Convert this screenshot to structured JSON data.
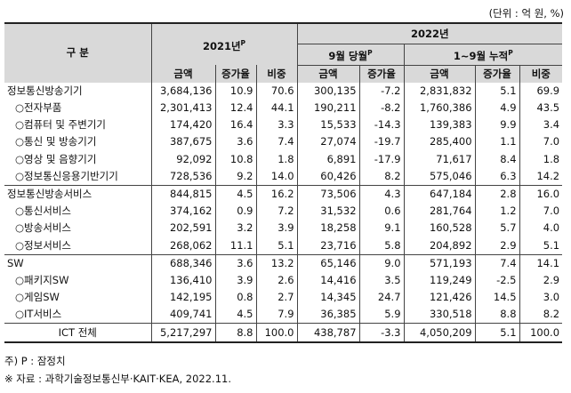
{
  "unit_label": "(단위 : 억 원, %)",
  "header": {
    "category": "구 분",
    "y2021": "2021년",
    "y2021_sup": "P",
    "y2022": "2022년",
    "sep": "9월 당월",
    "sep_sup": "P",
    "jan_sep": "1~9월 누적",
    "jan_sep_sup": "P",
    "amount": "금액",
    "growth": "증가율",
    "share": "비중"
  },
  "rows": [
    {
      "label": "정보통신방송기기",
      "a2021": "3,684,136",
      "g2021": "10.9",
      "s2021": "70.6",
      "a_sep": "300,135",
      "g_sep": "-7.2",
      "a_cum": "2,831,832",
      "g_cum": "5.1",
      "s_cum": "69.9"
    },
    {
      "label": "○전자부품",
      "a2021": "2,301,413",
      "g2021": "12.4",
      "s2021": "44.1",
      "a_sep": "190,211",
      "g_sep": "-8.2",
      "a_cum": "1,760,386",
      "g_cum": "4.9",
      "s_cum": "43.5"
    },
    {
      "label": "○컴퓨터 및 주변기기",
      "a2021": "174,420",
      "g2021": "16.4",
      "s2021": "3.3",
      "a_sep": "15,533",
      "g_sep": "-14.3",
      "a_cum": "139,383",
      "g_cum": "9.9",
      "s_cum": "3.4"
    },
    {
      "label": "○통신 및 방송기기",
      "a2021": "387,675",
      "g2021": "3.6",
      "s2021": "7.4",
      "a_sep": "27,074",
      "g_sep": "-19.7",
      "a_cum": "285,400",
      "g_cum": "1.1",
      "s_cum": "7.0"
    },
    {
      "label": "○영상 및 음향기기",
      "a2021": "92,092",
      "g2021": "10.8",
      "s2021": "1.8",
      "a_sep": "6,891",
      "g_sep": "-17.9",
      "a_cum": "71,617",
      "g_cum": "8.4",
      "s_cum": "1.8"
    },
    {
      "label": "○정보통신응용기반기기",
      "a2021": "728,536",
      "g2021": "9.2",
      "s2021": "14.0",
      "a_sep": "60,426",
      "g_sep": "8.2",
      "a_cum": "575,046",
      "g_cum": "6.3",
      "s_cum": "14.2"
    },
    {
      "label": "정보통신방송서비스",
      "a2021": "844,815",
      "g2021": "4.5",
      "s2021": "16.2",
      "a_sep": "73,506",
      "g_sep": "4.3",
      "a_cum": "647,184",
      "g_cum": "2.8",
      "s_cum": "16.0"
    },
    {
      "label": "○통신서비스",
      "a2021": "374,162",
      "g2021": "0.9",
      "s2021": "7.2",
      "a_sep": "31,532",
      "g_sep": "0.6",
      "a_cum": "281,764",
      "g_cum": "1.2",
      "s_cum": "7.0"
    },
    {
      "label": "○방송서비스",
      "a2021": "202,591",
      "g2021": "3.2",
      "s2021": "3.9",
      "a_sep": "18,258",
      "g_sep": "9.1",
      "a_cum": "160,528",
      "g_cum": "5.7",
      "s_cum": "4.0"
    },
    {
      "label": "○정보서비스",
      "a2021": "268,062",
      "g2021": "11.1",
      "s2021": "5.1",
      "a_sep": "23,716",
      "g_sep": "5.8",
      "a_cum": "204,892",
      "g_cum": "2.9",
      "s_cum": "5.1"
    },
    {
      "label": "SW",
      "a2021": "688,346",
      "g2021": "3.6",
      "s2021": "13.2",
      "a_sep": "65,146",
      "g_sep": "9.0",
      "a_cum": "571,193",
      "g_cum": "7.4",
      "s_cum": "14.1"
    },
    {
      "label": "○패키지SW",
      "a2021": "136,410",
      "g2021": "3.9",
      "s2021": "2.6",
      "a_sep": "14,416",
      "g_sep": "3.5",
      "a_cum": "119,249",
      "g_cum": "-2.5",
      "s_cum": "2.9"
    },
    {
      "label": "○게임SW",
      "a2021": "142,195",
      "g2021": "0.8",
      "s2021": "2.7",
      "a_sep": "14,345",
      "g_sep": "24.7",
      "a_cum": "121,426",
      "g_cum": "14.5",
      "s_cum": "3.0"
    },
    {
      "label": "○IT서비스",
      "a2021": "409,741",
      "g2021": "4.5",
      "s2021": "7.9",
      "a_sep": "36,385",
      "g_sep": "5.9",
      "a_cum": "330,518",
      "g_cum": "8.8",
      "s_cum": "8.2"
    }
  ],
  "total": {
    "label": "ICT 전체",
    "a2021": "5,217,297",
    "g2021": "8.8",
    "s2021": "100.0",
    "a_sep": "438,787",
    "g_sep": "-3.3",
    "a_cum": "4,050,209",
    "g_cum": "5.1",
    "s_cum": "100.0"
  },
  "notes": {
    "note1": "주) P : 잠정치",
    "note2": "※ 자료 : 과학기술정보통신부·KAIT·KEA, 2022.11."
  }
}
